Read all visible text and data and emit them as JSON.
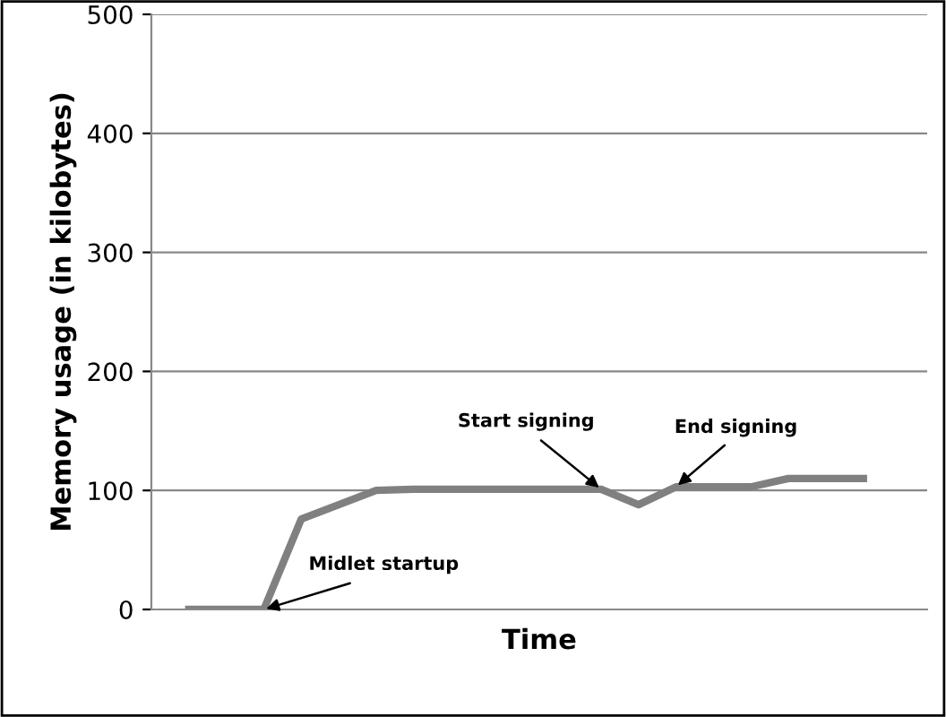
{
  "chart_data": {
    "type": "line",
    "xlabel": "Time",
    "ylabel": "Memory usage (in kilobytes)",
    "categories": [
      null,
      null,
      null,
      null,
      null,
      null,
      null,
      null,
      null,
      null,
      null,
      null,
      null,
      null,
      null,
      null,
      null,
      null,
      null
    ],
    "series": [
      {
        "color": "#808080",
        "values": [
          0,
          0,
          0,
          76,
          88,
          100,
          101,
          101,
          101,
          101,
          101,
          101,
          88,
          103,
          103,
          103,
          110,
          110,
          110
        ]
      }
    ],
    "ylim": [
      0,
      500
    ],
    "yticks": [
      0,
      100,
      200,
      300,
      400,
      500
    ],
    "grid": "y",
    "legend": false,
    "marker": "none",
    "line_style": "solid",
    "annotations": [
      "Midlet startup",
      "Start signing",
      "End signing"
    ]
  }
}
